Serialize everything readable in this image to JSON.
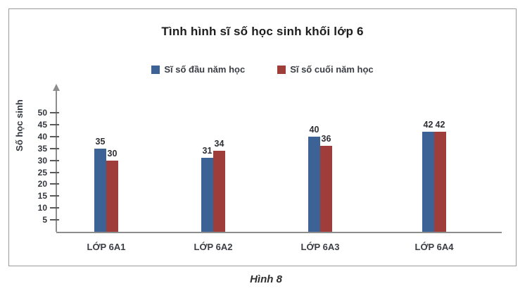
{
  "figure": {
    "caption": "Hình 8"
  },
  "chart_data": {
    "type": "bar",
    "title": "Tình hình sĩ số học sinh khối lớp 6",
    "ylabel": "Số học sinh",
    "xlabel": "",
    "categories": [
      "LỚP 6A1",
      "LỚP 6A2",
      "LỚP 6A3",
      "LỚP 6A4"
    ],
    "series": [
      {
        "name": "Sĩ số đầu năm học",
        "color": "#3d6296",
        "values": [
          35,
          31,
          40,
          42
        ]
      },
      {
        "name": "Sĩ số cuối năm học",
        "color": "#9e3d3a",
        "values": [
          30,
          34,
          36,
          42
        ]
      }
    ],
    "yticks": [
      5,
      10,
      15,
      20,
      25,
      30,
      35,
      40,
      45,
      50
    ],
    "ylim": [
      0,
      55
    ],
    "grid": false,
    "legend_position": "top",
    "data_labels": true,
    "axis_color": "#8d8d8d"
  }
}
